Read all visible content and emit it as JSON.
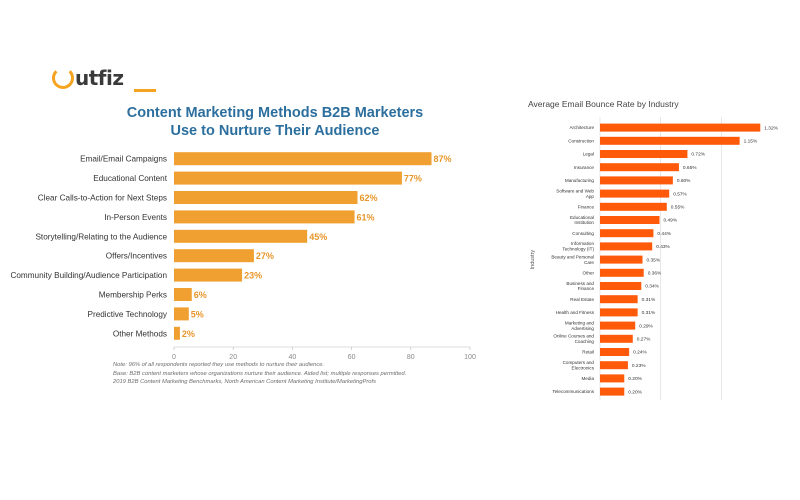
{
  "logo": {
    "text": "utfiz"
  },
  "left": {
    "title_line1": "Content Marketing Methods B2B Marketers",
    "title_line2": "Use to Nurture Their Audience",
    "notes": [
      "Note: 96% of all respondents reported they use methods to nurture their audience.",
      "Base: B2B content marketers whose organizations nurture their audience. Aided list; multiple responses permitted.",
      "2019 B2B Content Marketing Benchmarks, North American Content Marketing Institute/MarketingProfs"
    ]
  },
  "right": {
    "title": "Average Email Bounce Rate by Industry",
    "ylabel": "Industry"
  },
  "colors": {
    "left_bar": "#f0a030",
    "left_label": "#e8962a",
    "right_bar": "#ff5a0a"
  },
  "chart_data": [
    {
      "type": "bar",
      "orientation": "horizontal",
      "title": "Content Marketing Methods B2B Marketers Use to Nurture Their Audience",
      "categories": [
        "Email/Email Campaigns",
        "Educational Content",
        "Clear Calls-to-Action for Next Steps",
        "In-Person Events",
        "Storytelling/Relating to the Audience",
        "Offers/Incentives",
        "Community Building/Audience Participation",
        "Membership Perks",
        "Predictive Technology",
        "Other Methods"
      ],
      "values": [
        87,
        77,
        62,
        61,
        45,
        27,
        23,
        6,
        5,
        2
      ],
      "value_labels": [
        "87%",
        "77%",
        "62%",
        "61%",
        "45%",
        "27%",
        "23%",
        "6%",
        "5%",
        "2%"
      ],
      "xlim": [
        0,
        100
      ],
      "xticks": [
        "0",
        "20",
        "40",
        "60",
        "80",
        "100"
      ],
      "grid": false
    },
    {
      "type": "bar",
      "orientation": "horizontal",
      "title": "Average Email Bounce Rate by Industry",
      "ylabel": "Industry",
      "categories": [
        [
          "Architecture"
        ],
        [
          "Construction"
        ],
        [
          "Legal"
        ],
        [
          "Insurance"
        ],
        [
          "Manufacturing"
        ],
        [
          "Software and Web",
          "App"
        ],
        [
          "Finance"
        ],
        [
          "Educational",
          "Institution"
        ],
        [
          "Consulting"
        ],
        [
          "Information",
          "Technology (IT)"
        ],
        [
          "Beauty and Personal",
          "Care"
        ],
        [
          "Other"
        ],
        [
          "Business and",
          "Finance"
        ],
        [
          "Real Estate"
        ],
        [
          "Health and Fitness"
        ],
        [
          "Marketing and",
          "Advertising"
        ],
        [
          "Online Courses and",
          "Coaching"
        ],
        [
          "Retail"
        ],
        [
          "Computers and",
          "Electronics"
        ],
        [
          "Media"
        ],
        [
          "Telecommunications"
        ]
      ],
      "values": [
        1.32,
        1.15,
        0.72,
        0.65,
        0.6,
        0.57,
        0.55,
        0.49,
        0.44,
        0.43,
        0.35,
        0.36,
        0.34,
        0.31,
        0.31,
        0.29,
        0.27,
        0.24,
        0.23,
        0.2,
        0.2
      ],
      "value_labels": [
        "1.32%",
        "1.15%",
        "0.72%",
        "0.65%",
        "0.60%",
        "0.57%",
        "0.55%",
        "0.49%",
        "0.44%",
        "0.43%",
        "0.35%",
        "0.36%",
        "0.34%",
        "0.31%",
        "0.31%",
        "0.29%",
        "0.27%",
        "0.24%",
        "0.23%",
        "0.20%",
        "0.20%"
      ],
      "xlim": [
        0,
        1.4
      ],
      "grid": true
    }
  ]
}
